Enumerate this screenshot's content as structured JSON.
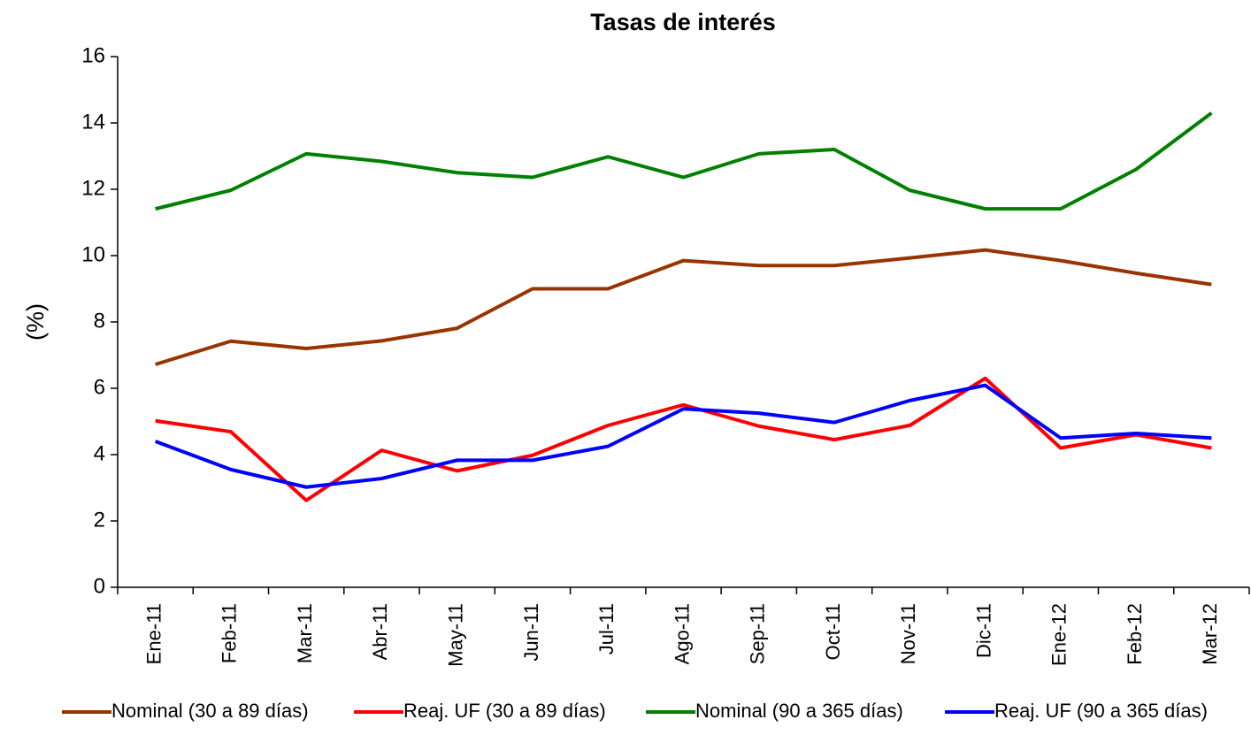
{
  "chart_data": {
    "type": "line",
    "title": "Tasas de interés",
    "y_label": "(%)",
    "categories": [
      "Ene-11",
      "Feb-11",
      "Mar-11",
      "Abr-11",
      "May-11",
      "Jun-11",
      "Jul-11",
      "Ago-11",
      "Sep-11",
      "Oct-11",
      "Nov-11",
      "Dic-11",
      "Ene-12",
      "Feb-12",
      "Mar-12"
    ],
    "series": [
      {
        "name": "Nominal (30 a 89 días)",
        "color": "#993300",
        "values": [
          6.72,
          7.42,
          7.2,
          7.43,
          7.81,
          9.0,
          9.0,
          9.85,
          9.7,
          9.7,
          9.93,
          10.17,
          9.85,
          9.47,
          9.13
        ]
      },
      {
        "name": "Reaj. UF (30 a 89 días)",
        "color": "#ff0000",
        "values": [
          5.02,
          4.69,
          2.62,
          4.13,
          3.51,
          3.98,
          4.88,
          5.5,
          4.86,
          4.45,
          4.88,
          6.3,
          4.2,
          4.6,
          4.2
        ]
      },
      {
        "name": "Nominal (90 a 365 días)",
        "color": "#008000",
        "values": [
          11.41,
          11.97,
          13.07,
          12.84,
          12.5,
          12.36,
          12.98,
          12.36,
          13.07,
          13.2,
          11.97,
          11.41,
          11.41,
          12.6,
          14.3
        ]
      },
      {
        "name": "Reaj. UF (90 a 365 días)",
        "color": "#0000ff",
        "values": [
          4.4,
          3.55,
          3.02,
          3.28,
          3.83,
          3.83,
          4.25,
          5.38,
          5.25,
          4.97,
          5.63,
          6.09,
          4.5,
          4.64,
          4.5
        ]
      }
    ],
    "ylim": [
      0,
      16
    ],
    "yticks": [
      0,
      2,
      4,
      6,
      8,
      10,
      12,
      14,
      16
    ],
    "legend": "bottom"
  }
}
